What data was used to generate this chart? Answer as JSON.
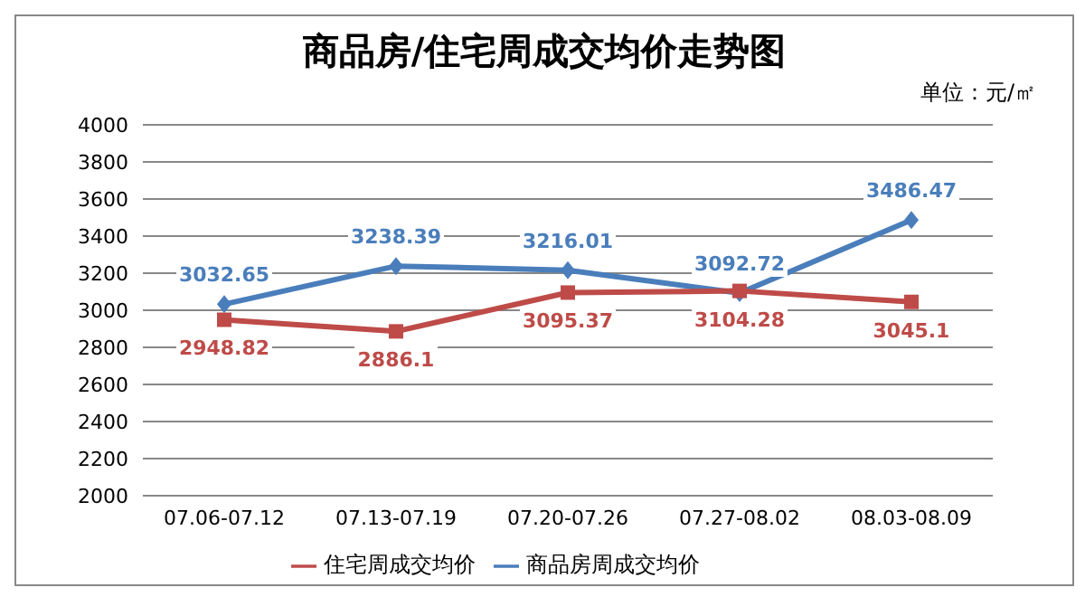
{
  "chart_data": {
    "type": "line",
    "title": "商品房/住宅周成交均价走势图",
    "subtitle": "单位：元/㎡",
    "categories": [
      "07.06-07.12",
      "07.13-07.19",
      "07.20-07.26",
      "07.27-08.02",
      "08.03-08.09"
    ],
    "series": [
      {
        "name": "商品房周成交均价",
        "color": "#4a7ebb",
        "marker": "diamond",
        "values": [
          3032.65,
          3238.39,
          3216.01,
          3092.72,
          3486.47
        ]
      },
      {
        "name": "住宅周成交均价",
        "color": "#be4b48",
        "marker": "square",
        "values": [
          2948.82,
          2886.1,
          3095.37,
          3104.28,
          3045.1
        ]
      }
    ],
    "ylim": [
      2000,
      4000
    ],
    "yticks": [
      2000,
      2200,
      2400,
      2600,
      2800,
      3000,
      3200,
      3400,
      3600,
      3800,
      4000
    ],
    "grid": "y",
    "legend": "bottom",
    "data_labels": true
  }
}
